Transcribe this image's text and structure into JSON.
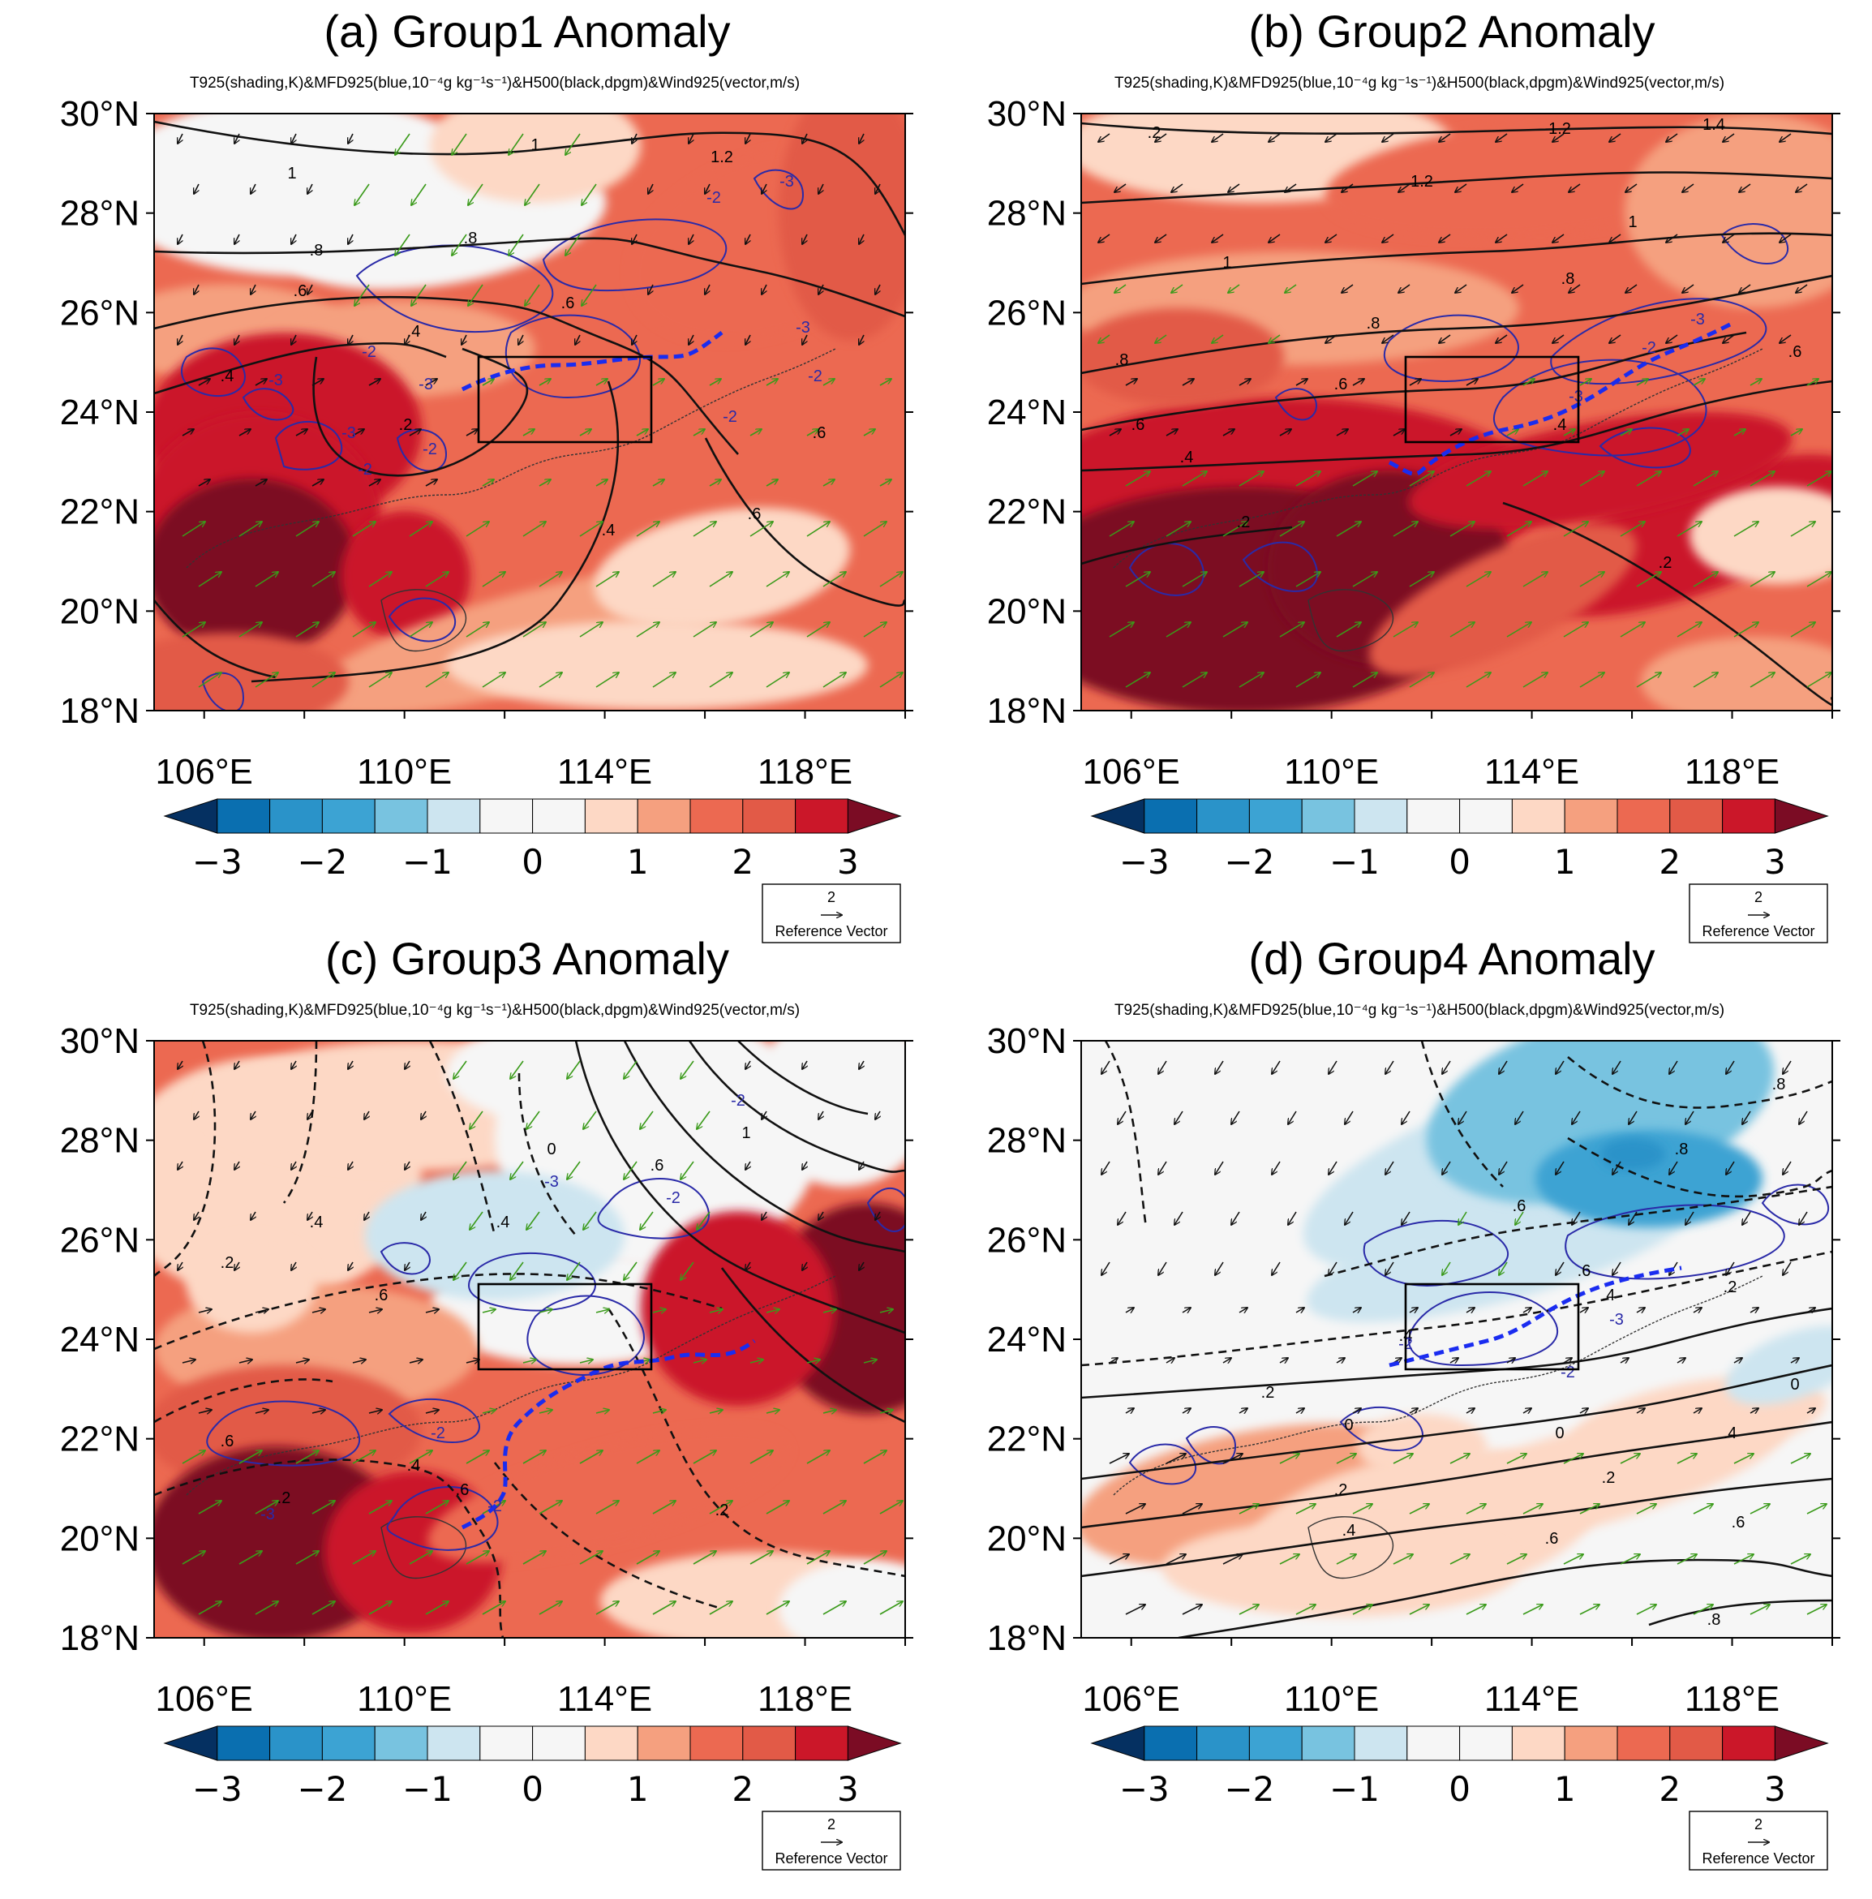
{
  "figure": {
    "colormap": {
      "colors": [
        "#053061",
        "#0a6fb0",
        "#2a93c9",
        "#3ca3d3",
        "#78c3e0",
        "#cde5f0",
        "#f6f6f6",
        "#f6f6f6",
        "#fdd8c5",
        "#f5a07f",
        "#ec6951",
        "#e25a47",
        "#cb1729",
        "#7b0c24"
      ],
      "labels": [
        "−3",
        "−2",
        "−1",
        "0",
        "1",
        "2",
        "3"
      ]
    },
    "panels": [
      {
        "id": "a",
        "title": "(a) Group1 Anomaly",
        "subtitle": "T925(shading,K)&MFD925(blue,10⁻⁴g kg⁻¹s⁻¹)&H500(black,dpgm)&Wind925(vector,m/s)",
        "ref_value": "2",
        "ref_label": "Reference Vector"
      },
      {
        "id": "b",
        "title": "(b) Group2 Anomaly",
        "subtitle": "T925(shading,K)&MFD925(blue,10⁻⁴g kg⁻¹s⁻¹)&H500(black,dpgm)&Wind925(vector,m/s)",
        "ref_value": "2",
        "ref_label": "Reference Vector"
      },
      {
        "id": "c",
        "title": "(c) Group3 Anomaly",
        "subtitle": "T925(shading,K)&MFD925(blue,10⁻⁴g kg⁻¹s⁻¹)&H500(black,dpgm)&Wind925(vector,m/s)",
        "ref_value": "2",
        "ref_label": "Reference Vector"
      },
      {
        "id": "d",
        "title": "(d) Group4 Anomaly",
        "subtitle": "T925(shading,K)&MFD925(blue,10⁻⁴g kg⁻¹s⁻¹)&H500(black,dpgm)&Wind925(vector,m/s)",
        "ref_value": "2",
        "ref_label": "Reference Vector"
      }
    ],
    "lat_labels": [
      "30°N",
      "28°N",
      "26°N",
      "24°N",
      "22°N",
      "20°N",
      "18°N"
    ],
    "lon_labels": [
      "106°E",
      "110°E",
      "114°E",
      "118°E"
    ],
    "contour_labels": {
      "a": [
        "1",
        "1.2",
        "1",
        "-3",
        "-2",
        ".8",
        ".8",
        ".6",
        ".6",
        ".4",
        ".4",
        "-2",
        "-3",
        "-3",
        "-3",
        "-2",
        ".2",
        "-3",
        "-2",
        "-2",
        "-2",
        ".6",
        ".6",
        ".4"
      ],
      "b": [
        ".2",
        "1.2",
        "1.4",
        "1.2",
        "1",
        "1",
        ".8",
        ".8",
        ".8",
        ".6",
        ".6",
        ".6",
        ".4",
        ".4",
        "-2",
        "-3",
        "-3",
        ".2",
        ".2"
      ],
      "c": [
        "0",
        ".6",
        "1",
        "-2",
        ".2",
        ".4",
        ".6",
        ".4",
        ".6",
        ".4",
        "-3",
        ".2",
        "-2",
        "-3",
        "-2",
        ".6",
        ".2",
        ".4",
        "-2"
      ],
      "d": [
        ".8",
        ".8",
        ".6",
        ".6",
        ".4",
        ".4",
        "-2",
        "-3",
        ".2",
        "-2",
        ".2",
        "0",
        "0",
        ".2",
        "0",
        ".2",
        ".4",
        ".4",
        ".6",
        ".6",
        ".8"
      ]
    }
  }
}
